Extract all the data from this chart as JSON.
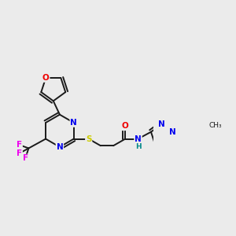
{
  "background_color": "#ebebeb",
  "bond_color": "#1a1a1a",
  "atom_colors": {
    "N": "#0000ee",
    "O": "#ee0000",
    "S": "#cccc00",
    "F": "#ee00ee",
    "H": "#008888",
    "C": "#1a1a1a"
  },
  "figsize": [
    3.0,
    3.0
  ],
  "dpi": 100,
  "lw": 1.4,
  "fs": 7.5
}
